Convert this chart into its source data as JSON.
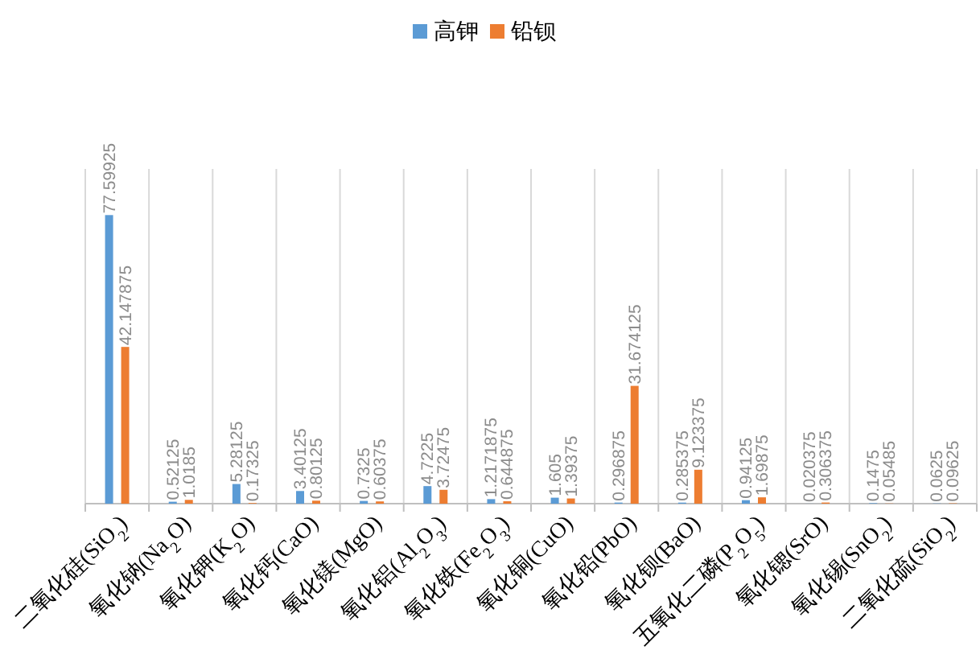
{
  "chart_data": {
    "type": "bar",
    "categories": [
      "二氧化硅(SiO$_{2}$)",
      "氧化钠(Na$_{2}$O)",
      "氧化钾(K$_{2}$O)",
      "氧化钙(CaO)",
      "氧化镁(MgO)",
      "氧化铝(Al$_{2}$O$_{3}$)",
      "氧化铁(Fe$_{2}$O$_{3}$)",
      "氧化铜(CuO)",
      "氧化铅(PbO)",
      "氧化钡(BaO)",
      "五氧化二磷(P$_{2}$O$_{5}$)",
      "氧化锶(SrO)",
      "氧化锡(SnO$_{2}$)",
      "二氧化硫(SiO$_{2}$)"
    ],
    "series": [
      {
        "name": "高钾",
        "color": "#5b9bd5",
        "values": [
          77.59925,
          0.52125,
          5.28125,
          3.40125,
          0.7325,
          4.7225,
          1.2171875,
          1.605,
          0.296875,
          0.285375,
          0.94125,
          0.020375,
          0.1475,
          0.0625
        ]
      },
      {
        "name": "铅钡",
        "color": "#ed7d31",
        "values": [
          42.147875,
          1.0185,
          0.17325,
          0.80125,
          0.60375,
          3.72475,
          0.644875,
          1.39375,
          31.674125,
          9.123375,
          1.69875,
          0.306375,
          0.05485,
          0.09625
        ]
      }
    ],
    "ylim": [
      0,
      90
    ],
    "grid": "x",
    "legend": "top",
    "data_labels": true
  }
}
